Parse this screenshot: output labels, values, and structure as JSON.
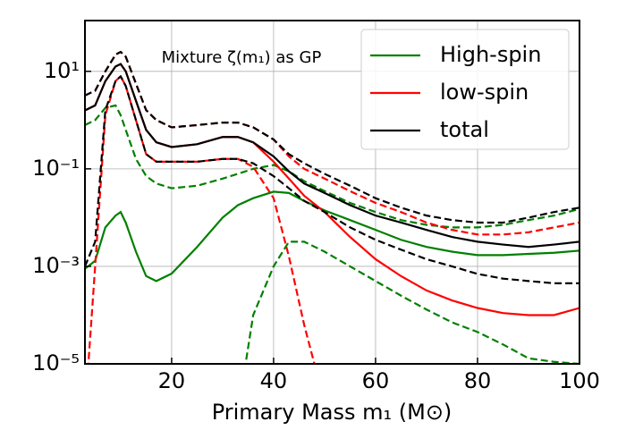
{
  "chart_data": {
    "type": "line",
    "annotation": "Mixture ζ(m₁) as GP",
    "xlabel": "Primary Mass m₁ (M⊙)",
    "x": [
      3,
      5,
      7,
      9,
      10,
      11,
      13,
      15,
      17,
      20,
      25,
      30,
      33,
      36,
      40,
      43,
      46,
      50,
      55,
      60,
      65,
      70,
      75,
      80,
      85,
      90,
      95,
      100
    ],
    "xlim": [
      3,
      100
    ],
    "xticks": [
      20,
      40,
      60,
      80,
      100
    ],
    "ylim": [
      1e-05,
      110
    ],
    "yscale": "log",
    "yticks": [
      {
        "value": 10,
        "label": "10¹"
      },
      {
        "value": 0.1,
        "label": "10⁻¹"
      },
      {
        "value": 0.001,
        "label": "10⁻³"
      },
      {
        "value": 1e-05,
        "label": "10⁻⁵"
      }
    ],
    "grid": true,
    "legend": "upper right",
    "series": [
      {
        "name": "High-spin",
        "color": "#008000",
        "values": [
          0.00089,
          0.0013,
          0.0063,
          0.011,
          0.013,
          0.0079,
          0.002,
          0.00063,
          0.0005,
          0.00071,
          0.0025,
          0.01,
          0.018,
          0.025,
          0.034,
          0.032,
          0.022,
          0.014,
          0.0089,
          0.0056,
          0.0035,
          0.0025,
          0.002,
          0.0017,
          0.0017,
          0.0018,
          0.0019,
          0.0021
        ],
        "upper": [
          0.79,
          1.0,
          1.78,
          2.0,
          1.26,
          0.63,
          0.16,
          0.071,
          0.05,
          0.04,
          0.045,
          0.063,
          0.079,
          0.1,
          0.12,
          0.089,
          0.056,
          0.035,
          0.02,
          0.013,
          0.0089,
          0.0071,
          0.0063,
          0.0063,
          0.0071,
          0.0089,
          0.011,
          0.015
        ],
        "lower": [
          null,
          null,
          null,
          null,
          null,
          null,
          null,
          null,
          null,
          null,
          null,
          null,
          1e-06,
          0.0001,
          0.001,
          0.0032,
          0.0032,
          0.002,
          0.001,
          0.0005,
          0.00025,
          0.00013,
          7.1e-05,
          4.5e-05,
          2.5e-05,
          1.3e-05,
          1.1e-05,
          1e-05
        ]
      },
      {
        "name": "low-spin",
        "color": "#ff0000",
        "values": [
          1.58,
          2.0,
          6.3,
          12.6,
          14.1,
          10,
          2.5,
          0.63,
          0.35,
          0.28,
          0.32,
          0.45,
          0.45,
          0.35,
          0.14,
          0.063,
          0.028,
          0.013,
          0.004,
          0.0014,
          0.00063,
          0.00032,
          0.0002,
          0.00014,
          0.00011,
          0.0001,
          0.0001,
          0.00014
        ],
        "upper": [
          3.2,
          4.0,
          10,
          22,
          25,
          20,
          5.6,
          1.6,
          1.0,
          0.71,
          0.79,
          0.89,
          0.89,
          0.71,
          0.4,
          0.18,
          0.1,
          0.063,
          0.035,
          0.02,
          0.013,
          0.0079,
          0.0056,
          0.0045,
          0.0045,
          0.005,
          0.0063,
          0.0079
        ],
        "lower": [
          1e-06,
          0.001,
          1.26,
          6.3,
          7.9,
          5.0,
          1.0,
          0.2,
          0.14,
          0.14,
          0.14,
          0.16,
          0.16,
          0.11,
          0.025,
          0.0016,
          6.3e-05,
          1.6e-06,
          null,
          null,
          null,
          null,
          null,
          null,
          null,
          null,
          null,
          null
        ]
      },
      {
        "name": "total",
        "color": "#000000",
        "values": [
          1.58,
          2.0,
          6.3,
          12.6,
          14.1,
          10,
          2.5,
          0.63,
          0.35,
          0.28,
          0.32,
          0.45,
          0.45,
          0.35,
          0.18,
          0.089,
          0.05,
          0.032,
          0.018,
          0.011,
          0.0079,
          0.0056,
          0.004,
          0.0032,
          0.0028,
          0.0025,
          0.0028,
          0.0032
        ],
        "upper": [
          3.2,
          4.0,
          10,
          22,
          25,
          20,
          5.6,
          1.6,
          1.0,
          0.71,
          0.79,
          0.89,
          0.89,
          0.71,
          0.4,
          0.2,
          0.13,
          0.079,
          0.045,
          0.025,
          0.016,
          0.011,
          0.0089,
          0.0079,
          0.0079,
          0.01,
          0.013,
          0.016
        ],
        "lower": [
          0.001,
          0.0032,
          1.6,
          6.3,
          7.9,
          5.0,
          1.0,
          0.2,
          0.14,
          0.14,
          0.14,
          0.16,
          0.16,
          0.13,
          0.071,
          0.04,
          0.022,
          0.013,
          0.0063,
          0.0035,
          0.0022,
          0.0014,
          0.001,
          0.0007,
          0.00056,
          0.0005,
          0.00045,
          0.00045
        ]
      }
    ]
  }
}
